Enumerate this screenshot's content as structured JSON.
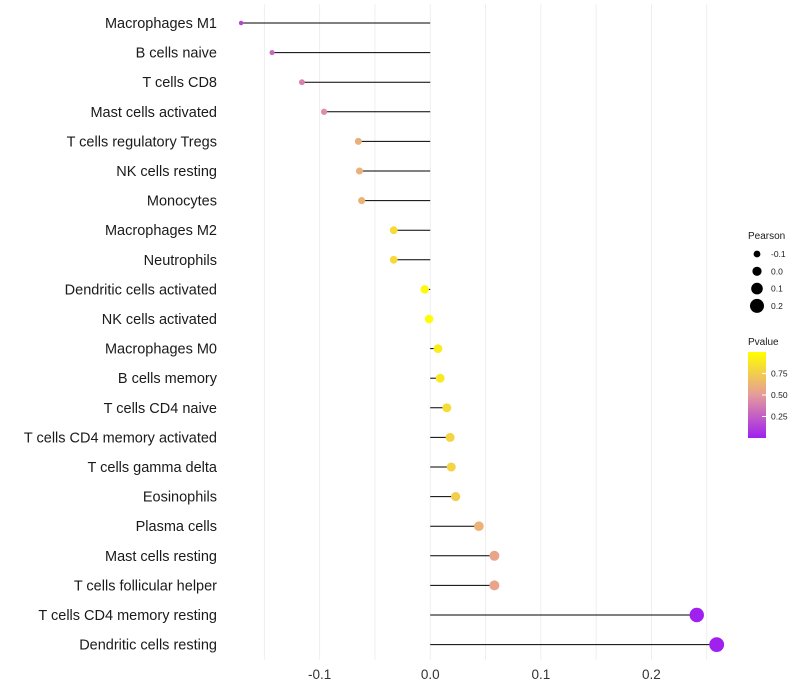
{
  "chart_data": {
    "type": "lollipop",
    "title": "",
    "xlabel": "",
    "ylabel": "",
    "xlim": [
      -0.172,
      0.262
    ],
    "x_ticks": [
      -0.1,
      0.0,
      0.1,
      0.2
    ],
    "x_tick_labels": [
      "-0.1",
      "0.0",
      "0.1",
      "0.2"
    ],
    "grid": "vertical",
    "categories": [
      "Macrophages M1",
      "B cells naive",
      "T cells CD8",
      "Mast cells activated",
      "T cells regulatory  Tregs ",
      "NK cells resting",
      "Monocytes",
      "Macrophages M2",
      "Neutrophils",
      "Dendritic cells activated",
      "NK cells activated",
      "Macrophages M0",
      "B cells memory",
      "T cells CD4 naive",
      "T cells CD4 memory activated",
      "T cells gamma delta",
      "Eosinophils",
      "Plasma cells",
      "Mast cells resting",
      "T cells follicular helper",
      "T cells CD4 memory resting",
      "Dendritic cells resting"
    ],
    "pearson": [
      -0.171,
      -0.143,
      -0.116,
      -0.096,
      -0.065,
      -0.064,
      -0.062,
      -0.033,
      -0.033,
      -0.005,
      -0.001,
      0.007,
      0.009,
      0.015,
      0.018,
      0.019,
      0.023,
      0.044,
      0.058,
      0.058,
      0.241,
      0.259
    ],
    "pvalue": [
      0.15,
      0.3,
      0.4,
      0.45,
      0.6,
      0.61,
      0.62,
      0.82,
      0.82,
      0.97,
      0.99,
      0.91,
      0.89,
      0.83,
      0.79,
      0.78,
      0.75,
      0.62,
      0.55,
      0.55,
      0.001,
      0.0005
    ],
    "legend_size": {
      "title": "Pearson",
      "values": [
        -0.1,
        0.0,
        0.1,
        0.2
      ],
      "labels": [
        "-0.1",
        "0.0",
        "0.1",
        "0.2"
      ]
    },
    "legend_color": {
      "title": "Pvalue",
      "range": [
        0.0,
        1.0
      ],
      "ticks": [
        0.25,
        0.5,
        0.75
      ],
      "tick_labels": [
        "0.25",
        "0.50",
        "0.75"
      ],
      "low_color": "#a020f0",
      "high_color": "#ffff00"
    },
    "legend_position": "right"
  },
  "colors": {
    "background": "#ffffff",
    "grid": "#ebebeb",
    "stem": "#000000",
    "text": "#1a1a1a"
  }
}
